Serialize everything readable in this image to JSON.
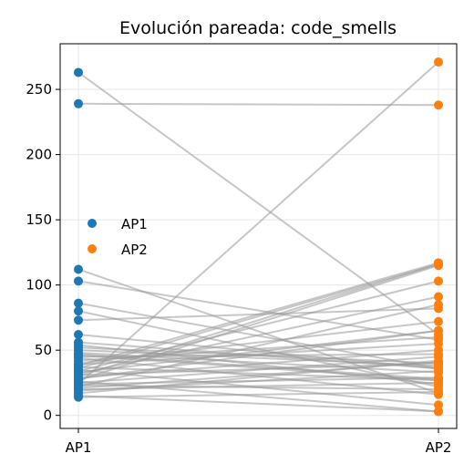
{
  "chart_data": {
    "type": "scatter",
    "title": "Evolución pareada: code_smells",
    "xlabel": "",
    "ylabel": "",
    "categories": [
      "AP1",
      "AP2"
    ],
    "yticks": [
      0,
      50,
      100,
      150,
      200,
      250
    ],
    "ylim": [
      -10,
      285
    ],
    "grid": true,
    "legend_position": "center-left",
    "series": [
      {
        "name": "AP1",
        "color": "#1f77b4"
      },
      {
        "name": "AP2",
        "color": "#ff7f0e"
      }
    ],
    "line_color": "#999999",
    "pairs": [
      [
        263,
        62
      ],
      [
        239,
        238
      ],
      [
        24,
        271
      ],
      [
        112,
        17
      ],
      [
        103,
        58
      ],
      [
        86,
        36
      ],
      [
        80,
        22
      ],
      [
        73,
        82
      ],
      [
        62,
        36
      ],
      [
        56,
        36
      ],
      [
        52,
        40
      ],
      [
        48,
        33
      ],
      [
        45,
        47
      ],
      [
        42,
        60
      ],
      [
        40,
        72
      ],
      [
        38,
        117
      ],
      [
        36,
        116
      ],
      [
        34,
        103
      ],
      [
        32,
        91
      ],
      [
        30,
        116
      ],
      [
        28,
        65
      ],
      [
        27,
        115
      ],
      [
        25,
        45
      ],
      [
        24,
        29
      ],
      [
        22,
        85
      ],
      [
        21,
        41
      ],
      [
        20,
        25
      ],
      [
        19,
        34
      ],
      [
        23,
        20
      ],
      [
        26,
        3
      ],
      [
        29,
        50
      ],
      [
        33,
        65
      ],
      [
        35,
        8
      ],
      [
        14,
        18
      ],
      [
        15,
        3
      ],
      [
        17,
        42
      ],
      [
        37,
        27
      ],
      [
        44,
        16
      ],
      [
        50,
        38
      ],
      [
        31,
        40
      ],
      [
        39,
        55
      ],
      [
        47,
        28
      ],
      [
        54,
        24
      ],
      [
        46,
        27
      ]
    ]
  }
}
